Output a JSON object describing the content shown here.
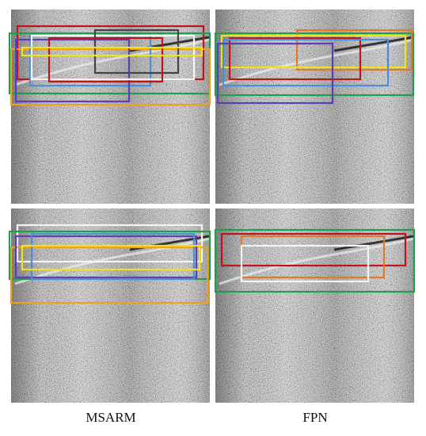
{
  "figure": {
    "captions": [
      "MSARM",
      "FPN"
    ]
  }
}
